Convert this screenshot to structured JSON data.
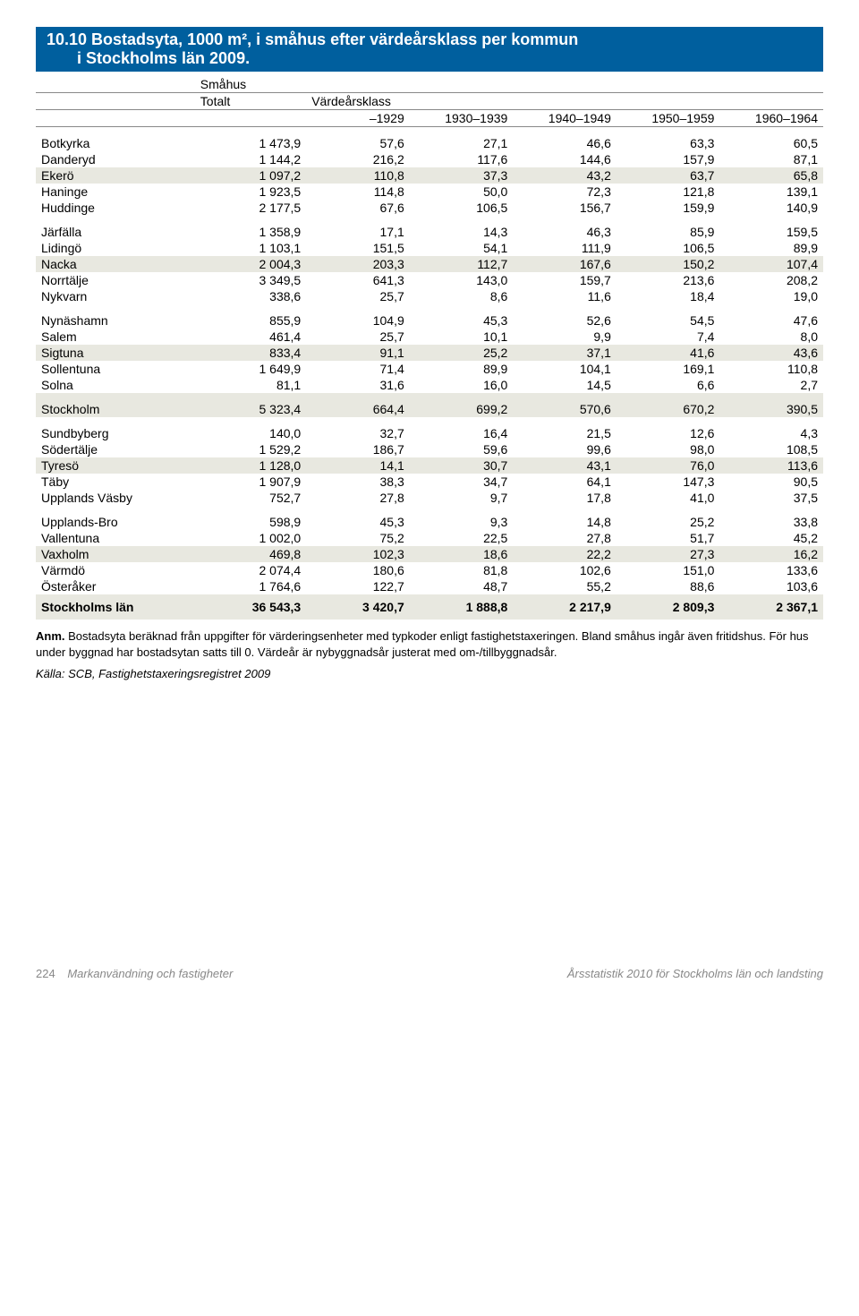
{
  "title_line1": "10.10 Bostadsyta, 1000 m², i småhus efter värdeårsklass per kommun",
  "title_line2": "i Stockholms län 2009.",
  "hdr": {
    "smahaus": "Småhus",
    "totalt": "Totalt",
    "varde": "Värdeårsklass",
    "c1": "–1929",
    "c2": "1930–1939",
    "c3": "1940–1949",
    "c4": "1950–1959",
    "c5": "1960–1964"
  },
  "groups": [
    {
      "rows": [
        {
          "lbl": "Botkyrka",
          "tot": "1 473,9",
          "v": [
            "57,6",
            "27,1",
            "46,6",
            "63,3",
            "60,5"
          ]
        },
        {
          "lbl": "Danderyd",
          "tot": "1 144,2",
          "v": [
            "216,2",
            "117,6",
            "144,6",
            "157,9",
            "87,1"
          ]
        },
        {
          "lbl": "Ekerö",
          "tot": "1 097,2",
          "v": [
            "110,8",
            "37,3",
            "43,2",
            "63,7",
            "65,8"
          ],
          "shade": true
        },
        {
          "lbl": "Haninge",
          "tot": "1 923,5",
          "v": [
            "114,8",
            "50,0",
            "72,3",
            "121,8",
            "139,1"
          ]
        },
        {
          "lbl": "Huddinge",
          "tot": "2 177,5",
          "v": [
            "67,6",
            "106,5",
            "156,7",
            "159,9",
            "140,9"
          ]
        }
      ]
    },
    {
      "rows": [
        {
          "lbl": "Järfälla",
          "tot": "1 358,9",
          "v": [
            "17,1",
            "14,3",
            "46,3",
            "85,9",
            "159,5"
          ]
        },
        {
          "lbl": "Lidingö",
          "tot": "1 103,1",
          "v": [
            "151,5",
            "54,1",
            "111,9",
            "106,5",
            "89,9"
          ]
        },
        {
          "lbl": "Nacka",
          "tot": "2 004,3",
          "v": [
            "203,3",
            "112,7",
            "167,6",
            "150,2",
            "107,4"
          ],
          "shade": true
        },
        {
          "lbl": "Norrtälje",
          "tot": "3 349,5",
          "v": [
            "641,3",
            "143,0",
            "159,7",
            "213,6",
            "208,2"
          ]
        },
        {
          "lbl": "Nykvarn",
          "tot": "338,6",
          "v": [
            "25,7",
            "8,6",
            "11,6",
            "18,4",
            "19,0"
          ]
        }
      ]
    },
    {
      "rows": [
        {
          "lbl": "Nynäshamn",
          "tot": "855,9",
          "v": [
            "104,9",
            "45,3",
            "52,6",
            "54,5",
            "47,6"
          ]
        },
        {
          "lbl": "Salem",
          "tot": "461,4",
          "v": [
            "25,7",
            "10,1",
            "9,9",
            "7,4",
            "8,0"
          ]
        },
        {
          "lbl": "Sigtuna",
          "tot": "833,4",
          "v": [
            "91,1",
            "25,2",
            "37,1",
            "41,6",
            "43,6"
          ],
          "shade": true
        },
        {
          "lbl": "Sollentuna",
          "tot": "1 649,9",
          "v": [
            "71,4",
            "89,9",
            "104,1",
            "169,1",
            "110,8"
          ]
        },
        {
          "lbl": "Solna",
          "tot": "81,1",
          "v": [
            "31,6",
            "16,0",
            "14,5",
            "6,6",
            "2,7"
          ]
        }
      ]
    },
    {
      "rows": [
        {
          "lbl": "Stockholm",
          "tot": "5 323,4",
          "v": [
            "664,4",
            "699,2",
            "570,6",
            "670,2",
            "390,5"
          ],
          "shade": true
        }
      ]
    },
    {
      "rows": [
        {
          "lbl": "Sundbyberg",
          "tot": "140,0",
          "v": [
            "32,7",
            "16,4",
            "21,5",
            "12,6",
            "4,3"
          ]
        },
        {
          "lbl": "Södertälje",
          "tot": "1 529,2",
          "v": [
            "186,7",
            "59,6",
            "99,6",
            "98,0",
            "108,5"
          ]
        },
        {
          "lbl": "Tyresö",
          "tot": "1 128,0",
          "v": [
            "14,1",
            "30,7",
            "43,1",
            "76,0",
            "113,6"
          ],
          "shade": true
        },
        {
          "lbl": "Täby",
          "tot": "1 907,9",
          "v": [
            "38,3",
            "34,7",
            "64,1",
            "147,3",
            "90,5"
          ]
        },
        {
          "lbl": "Upplands Väsby",
          "tot": "752,7",
          "v": [
            "27,8",
            "9,7",
            "17,8",
            "41,0",
            "37,5"
          ]
        }
      ]
    },
    {
      "rows": [
        {
          "lbl": "Upplands-Bro",
          "tot": "598,9",
          "v": [
            "45,3",
            "9,3",
            "14,8",
            "25,2",
            "33,8"
          ]
        },
        {
          "lbl": "Vallentuna",
          "tot": "1 002,0",
          "v": [
            "75,2",
            "22,5",
            "27,8",
            "51,7",
            "45,2"
          ]
        },
        {
          "lbl": "Vaxholm",
          "tot": "469,8",
          "v": [
            "102,3",
            "18,6",
            "22,2",
            "27,3",
            "16,2"
          ],
          "shade": true
        },
        {
          "lbl": "Värmdö",
          "tot": "2 074,4",
          "v": [
            "180,6",
            "81,8",
            "102,6",
            "151,0",
            "133,6"
          ]
        },
        {
          "lbl": "Österåker",
          "tot": "1 764,6",
          "v": [
            "122,7",
            "48,7",
            "55,2",
            "88,6",
            "103,6"
          ]
        }
      ]
    }
  ],
  "total_row": {
    "lbl": "Stockholms län",
    "tot": "36 543,3",
    "v": [
      "3 420,7",
      "1 888,8",
      "2 217,9",
      "2 809,3",
      "2 367,1"
    ]
  },
  "note": {
    "anm": "Anm.",
    "text": " Bostadsyta beräknad från uppgifter för värderingsenheter med typkoder enligt fastighetstaxeringen. Bland småhus ingår även fritidshus. För hus under byggnad har bostadsytan satts till 0. Värdeår är nybyggnadsår justerat med om-/tillbyggnadsår."
  },
  "source": "Källa: SCB, Fastighetstaxeringsregistret 2009",
  "footer": {
    "page": "224",
    "left": "Markanvändning och fastigheter",
    "right": "Årsstatistik 2010 för Stockholms län och landsting"
  }
}
